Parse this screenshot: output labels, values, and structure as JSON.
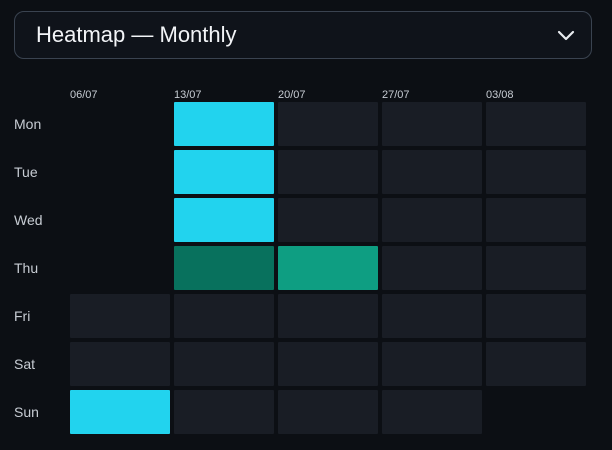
{
  "view_select": {
    "label": "Heatmap — Monthly"
  },
  "colors": {
    "empty": "#191d25",
    "high": "#22d3ee",
    "medium": "#0e9e82",
    "low": "#08715d",
    "label": "#c7ccd3"
  },
  "chart_data": {
    "type": "heatmap",
    "title": "",
    "x_labels": [
      "06/07",
      "13/07",
      "20/07",
      "27/07",
      "03/08"
    ],
    "y_labels": [
      "Mon",
      "Tue",
      "Wed",
      "Thu",
      "Fri",
      "Sat",
      "Sun"
    ],
    "cells": [
      [
        "none",
        "high",
        "empty",
        "empty",
        "empty"
      ],
      [
        "none",
        "high",
        "empty",
        "empty",
        "empty"
      ],
      [
        "none",
        "high",
        "empty",
        "empty",
        "empty"
      ],
      [
        "none",
        "low",
        "medium",
        "empty",
        "empty"
      ],
      [
        "empty",
        "empty",
        "empty",
        "empty",
        "empty"
      ],
      [
        "empty",
        "empty",
        "empty",
        "empty",
        "empty"
      ],
      [
        "high",
        "empty",
        "empty",
        "empty",
        "none"
      ]
    ]
  }
}
